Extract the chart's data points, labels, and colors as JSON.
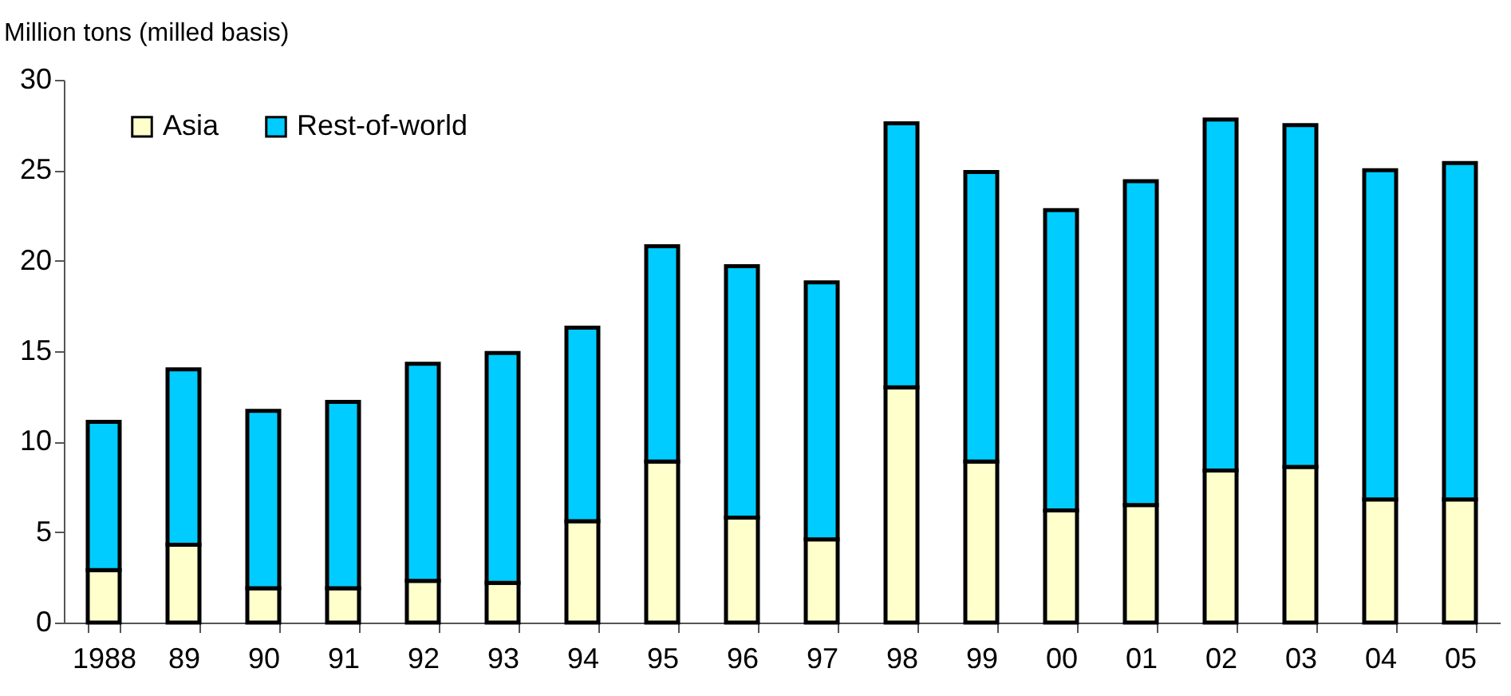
{
  "chart_data": {
    "type": "bar",
    "stacked": true,
    "ylabel": "Million tons (milled basis)",
    "categories": [
      "1988",
      "89",
      "90",
      "91",
      "92",
      "93",
      "94",
      "95",
      "96",
      "97",
      "98",
      "99",
      "00",
      "01",
      "02",
      "03",
      "04",
      "05"
    ],
    "series": [
      {
        "name": "Asia",
        "color": "#ffffcc",
        "values": [
          2.9,
          4.3,
          1.9,
          1.9,
          2.3,
          2.2,
          5.6,
          8.9,
          5.8,
          4.6,
          13.0,
          8.9,
          6.2,
          6.5,
          8.4,
          8.6,
          6.8,
          6.8
        ]
      },
      {
        "name": "Rest-of-world",
        "color": "#00ccff",
        "values": [
          8.2,
          9.7,
          9.8,
          10.3,
          12.0,
          12.7,
          10.7,
          11.9,
          13.9,
          14.2,
          14.6,
          16.0,
          16.6,
          17.9,
          19.4,
          18.9,
          18.2,
          18.6
        ]
      }
    ],
    "ylim": [
      0,
      30
    ],
    "yticks": [
      0,
      5,
      10,
      15,
      20,
      25,
      30
    ],
    "grid": false,
    "legend": "top left"
  }
}
